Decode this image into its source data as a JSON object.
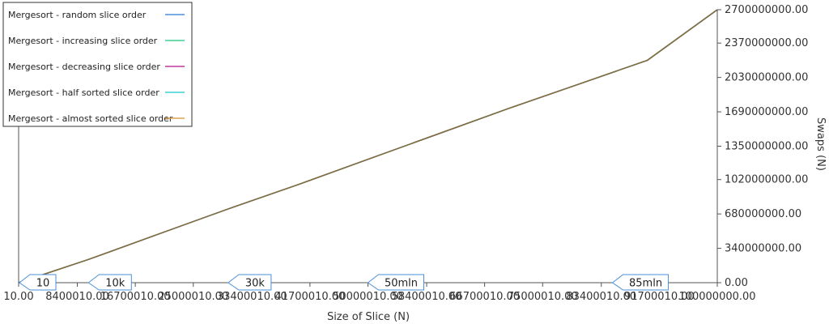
{
  "chart_data": {
    "type": "line",
    "xlabel": "Size of Slice (N)",
    "ylabel": "Swaps (N)",
    "xlim": [
      10,
      100000000
    ],
    "ylim": [
      0,
      2700000000
    ],
    "x_ticks": [
      10,
      8400010,
      16700010,
      25000010,
      33400010,
      41700010,
      50000010,
      58400010,
      66700010,
      75000010,
      83400010,
      91700010,
      100000000
    ],
    "x_tick_labels": [
      "10.00",
      "8400010.00",
      "16700010.00",
      "25000010.00",
      "33400010.00",
      "41700010.00",
      "50000010.00",
      "58400010.00",
      "66700010.00",
      "75000010.00",
      "83400010.00",
      "91700010.00",
      "100000000.00"
    ],
    "y_ticks": [
      0,
      340000000,
      680000000,
      1020000000,
      1350000000,
      1690000000,
      2030000000,
      2370000000,
      2700000000
    ],
    "y_tick_labels": [
      "0.00",
      "340000000.00",
      "680000000.00",
      "1020000000.00",
      "1350000000.00",
      "1690000000.00",
      "2030000000.00",
      "2370000000.00",
      "2700000000.00"
    ],
    "legend_position": "top-left",
    "grid": false,
    "markers": [
      {
        "label": "10",
        "x": 10
      },
      {
        "label": "10k",
        "x": 10000000
      },
      {
        "label": "30k",
        "x": 30000000
      },
      {
        "label": "50mln",
        "x": 50000000
      },
      {
        "label": "85mln",
        "x": 85000000
      }
    ],
    "x": [
      10,
      10000000,
      20000000,
      30000000,
      40000000,
      50000000,
      60000000,
      70000000,
      80000000,
      90000000,
      100000000
    ],
    "series": [
      {
        "name": "Mergesort - random slice order",
        "color": "#4a90d9",
        "values": [
          0,
          230000000,
          480000000,
          730000000,
          970000000,
          1220000000,
          1470000000,
          1720000000,
          1960000000,
          2200000000,
          2700000000
        ]
      },
      {
        "name": "Mergesort - increasing slice order",
        "color": "#3ecf8e",
        "values": [
          0,
          230000000,
          480000000,
          730000000,
          970000000,
          1220000000,
          1470000000,
          1720000000,
          1960000000,
          2200000000,
          2700000000
        ]
      },
      {
        "name": "Mergesort - decreasing slice order",
        "color": "#c0399b",
        "values": [
          0,
          230000000,
          480000000,
          730000000,
          970000000,
          1220000000,
          1470000000,
          1720000000,
          1960000000,
          2200000000,
          2700000000
        ]
      },
      {
        "name": "Mergesort - half sorted slice order",
        "color": "#3fd1d1",
        "values": [
          0,
          230000000,
          480000000,
          730000000,
          970000000,
          1220000000,
          1470000000,
          1720000000,
          1960000000,
          2200000000,
          2700000000
        ]
      },
      {
        "name": "Mergesort - almost sorted slice order",
        "color": "#8a6a3a",
        "legend_color": "#e0a050",
        "values": [
          0,
          230000000,
          480000000,
          730000000,
          970000000,
          1220000000,
          1470000000,
          1720000000,
          1960000000,
          2200000000,
          2700000000
        ]
      }
    ]
  }
}
